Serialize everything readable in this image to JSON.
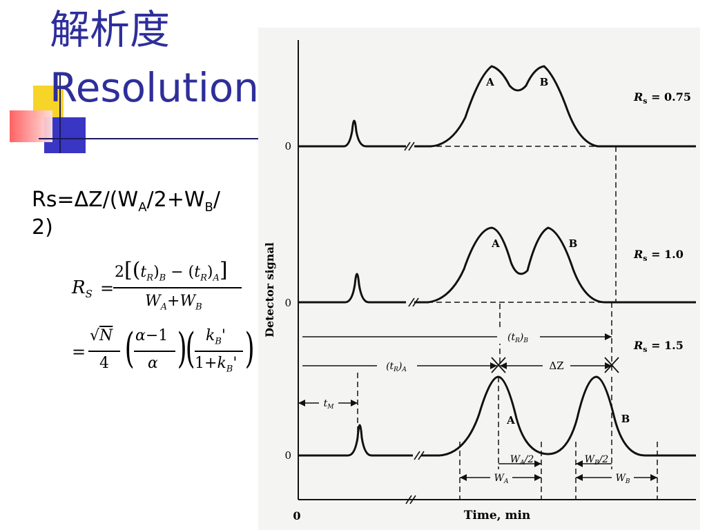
{
  "slide": {
    "title_cn": "解析度",
    "title_en": "Resolution",
    "formula_text": {
      "prefix": "Rs=",
      "delta_z": "ΔZ/(W",
      "sub_a": "A",
      "mid": "/2+W",
      "sub_b": "B",
      "tail": "/",
      "line2": "2)"
    }
  },
  "equation": {
    "lhs": "R",
    "lhs_sub": "S",
    "numer_two": "2",
    "t_r": "t",
    "t_sub": "R",
    "b_sub": "B",
    "a_sub": "A",
    "minus": "−",
    "denom_w": "W",
    "plus": "+",
    "eq_sign": "=",
    "sqrt_n": "N",
    "four": "4",
    "alpha": "α",
    "minus_one": "−1",
    "k": "k",
    "prime": "'",
    "one_plus": "1+"
  },
  "figure": {
    "y_axis_label": "Detector signal",
    "x_axis_label": "Time, min",
    "zero_labels": [
      "0",
      "0",
      "0"
    ],
    "x_zero": "0",
    "panels": [
      {
        "rs_label": "R",
        "rs_sub": "s",
        "rs_value": " = 0.75",
        "peak_a": "A",
        "peak_b": "B"
      },
      {
        "rs_label": "R",
        "rs_sub": "s",
        "rs_value": " = 1.0",
        "peak_a": "A",
        "peak_b": "B"
      },
      {
        "rs_label": "R",
        "rs_sub": "s",
        "rs_value": " = 1.5",
        "peak_a": "A",
        "peak_b": "B"
      }
    ],
    "annotations": {
      "tr_b": "(t",
      "tr_b_sub": "R",
      "tr_b_end": ")",
      "tr_b_sub2": "B",
      "tr_a": "(t",
      "tr_a_sub": "R",
      "tr_a_end": ")",
      "tr_a_sub2": "A",
      "delta_z": "ΔZ",
      "tm": "t",
      "tm_sub": "M",
      "wa_half": "W",
      "wa_half_sub": "A",
      "wa_half_end": "/2",
      "wb_half": "W",
      "wb_half_sub": "B",
      "wb_half_end": "/2",
      "wa": "W",
      "wa_sub": "A",
      "wb": "W",
      "wb_sub": "B"
    }
  }
}
